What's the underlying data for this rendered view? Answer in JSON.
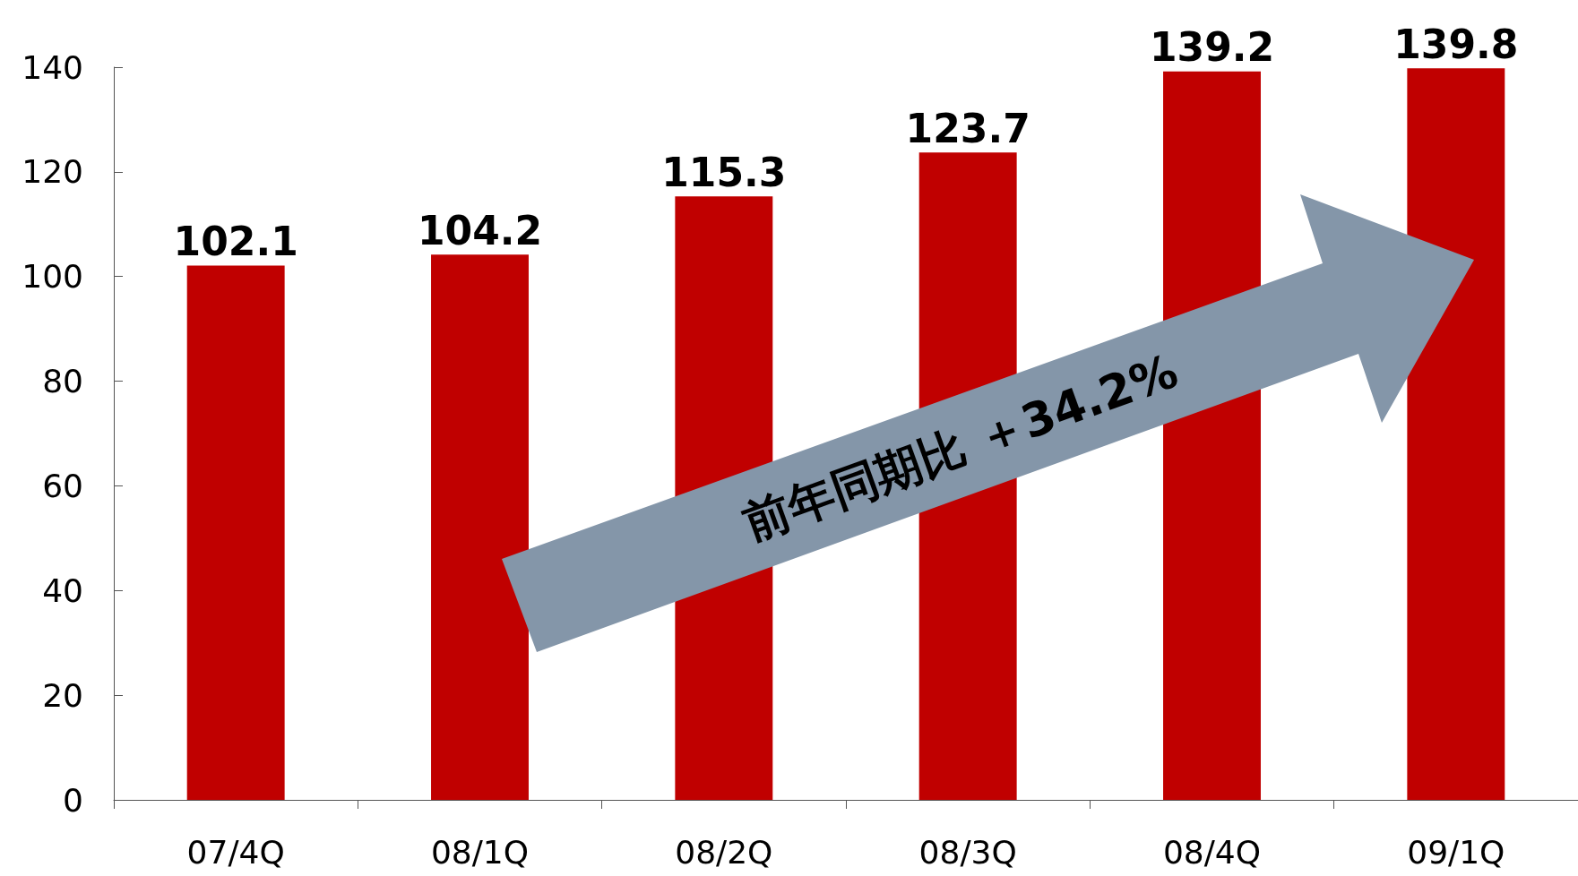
{
  "chart_data": {
    "type": "bar",
    "categories": [
      "07/4Q",
      "08/1Q",
      "08/2Q",
      "08/3Q",
      "08/4Q",
      "09/1Q"
    ],
    "values": [
      102.1,
      104.2,
      115.3,
      123.7,
      139.2,
      139.8
    ],
    "color": "#c00000",
    "ylim": [
      0,
      140
    ],
    "yticks": [
      0,
      20,
      40,
      60,
      80,
      100,
      120,
      140
    ],
    "data_labels": true,
    "grid": false,
    "annotations": [
      "前年同期比 ＋34.2%"
    ]
  }
}
